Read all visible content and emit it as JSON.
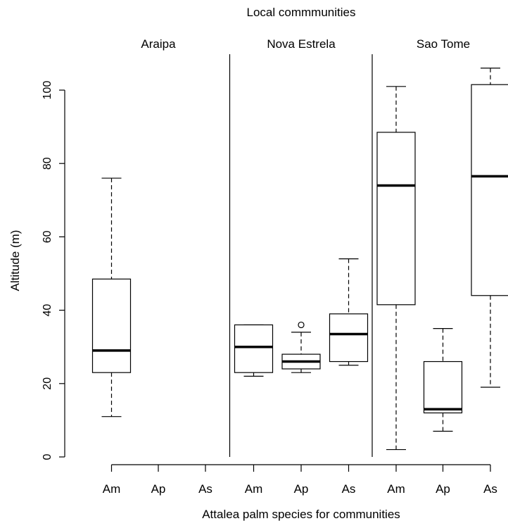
{
  "chart_data": {
    "type": "boxplot",
    "title": "Local commmunities",
    "xlabel": "Attalea palm species for communities",
    "ylabel": "Altitude (m)",
    "ylim": [
      0,
      106
    ],
    "y_ticks": [
      0,
      20,
      40,
      60,
      80,
      100
    ],
    "y_tick_labels": [
      "0",
      "20",
      "40",
      "60",
      "80",
      "100"
    ],
    "groups": [
      {
        "name": "Araipa",
        "boxes": [
          {
            "label": "Am",
            "whisker_low": 11,
            "q1": 23,
            "median": 29,
            "q3": 48.5,
            "whisker_high": 76,
            "outliers": []
          },
          {
            "label": "Ap",
            "empty": true
          },
          {
            "label": "As",
            "empty": true
          }
        ]
      },
      {
        "name": "Nova Estrela",
        "boxes": [
          {
            "label": "Am",
            "whisker_low": 22,
            "q1": 23,
            "median": 30,
            "q3": 36,
            "whisker_high": 36,
            "outliers": []
          },
          {
            "label": "Ap",
            "whisker_low": 23,
            "q1": 24,
            "median": 26,
            "q3": 28,
            "whisker_high": 34,
            "outliers": [
              36
            ]
          },
          {
            "label": "As",
            "whisker_low": 25,
            "q1": 26,
            "median": 33.5,
            "q3": 39,
            "whisker_high": 54,
            "outliers": []
          }
        ]
      },
      {
        "name": "Sao Tome",
        "boxes": [
          {
            "label": "Am",
            "whisker_low": 2,
            "q1": 41.5,
            "median": 74,
            "q3": 88.5,
            "whisker_high": 101,
            "outliers": []
          },
          {
            "label": "Ap",
            "whisker_low": 7,
            "q1": 12,
            "median": 13,
            "q3": 26,
            "whisker_high": 35,
            "outliers": []
          },
          {
            "label": "As",
            "whisker_low": 19,
            "q1": 44,
            "median": 76.5,
            "q3": 101.5,
            "whisker_high": 106,
            "outliers": []
          }
        ]
      }
    ]
  }
}
